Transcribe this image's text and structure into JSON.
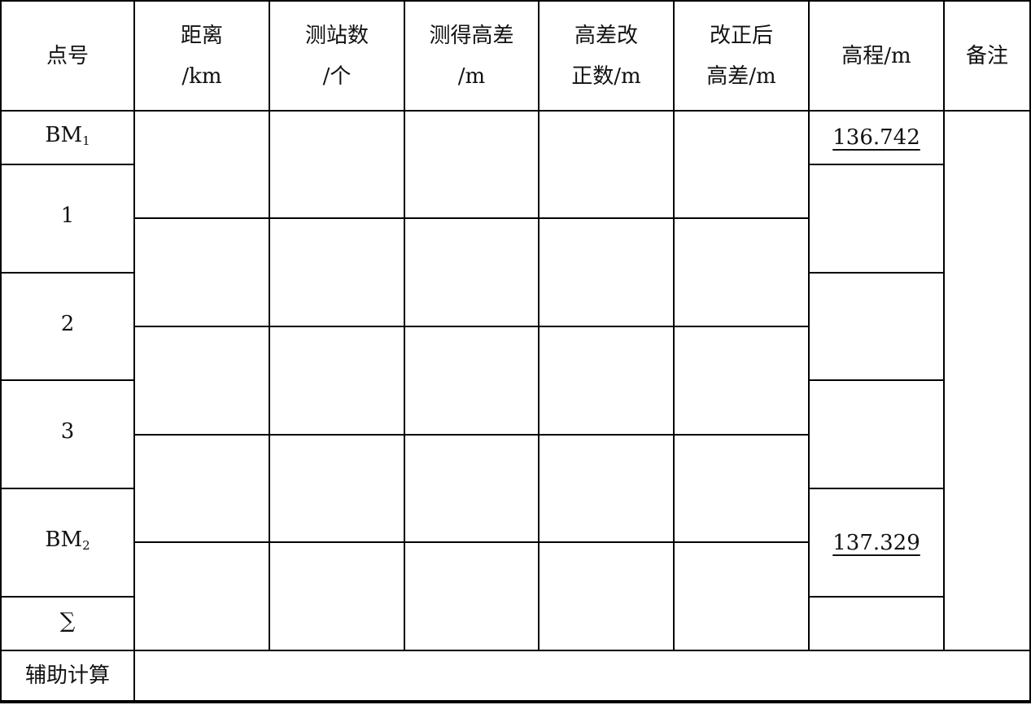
{
  "headers": [
    "点号",
    "距离\n/km",
    "测站数\n/个",
    "测得高差\n/m",
    "高差改\n正数/m",
    "改正后\n高差/m",
    "高程/m",
    "备注"
  ],
  "points": [
    {
      "name": "BM",
      "sub": "1"
    },
    {
      "name": "1",
      "sub": ""
    },
    {
      "name": "2",
      "sub": ""
    },
    {
      "name": "3",
      "sub": ""
    },
    {
      "name": "BM",
      "sub": "2"
    },
    {
      "name": "∑",
      "sub": ""
    }
  ],
  "elevations": [
    "136.742",
    "",
    "",
    "",
    "137.329",
    ""
  ],
  "aux_label": "辅助计算",
  "aux_value": ""
}
